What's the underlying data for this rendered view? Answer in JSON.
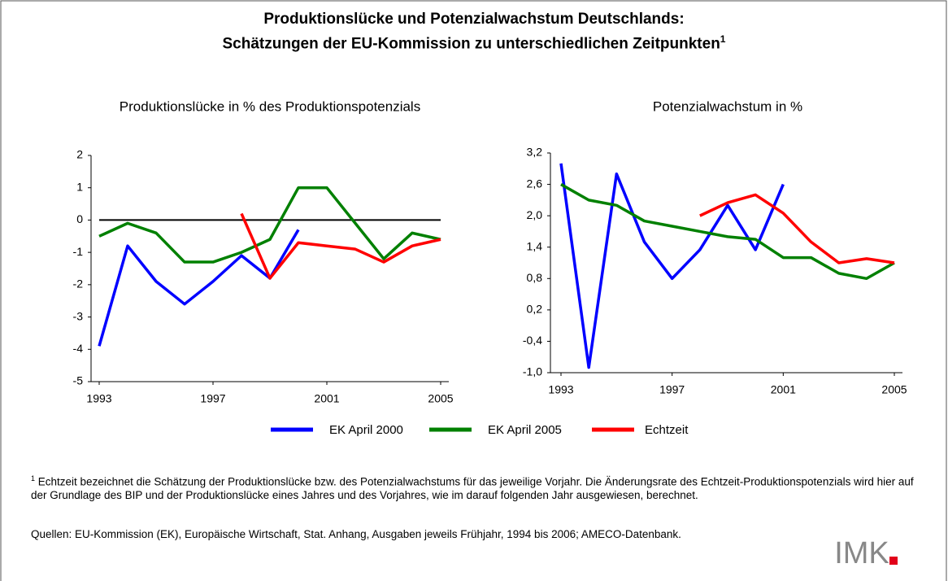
{
  "title": [
    "Produktionslücke und Potenzialwachstum Deutschlands:",
    "Schätzungen der EU-Kommission zu unterschiedlichen Zeitpunkten"
  ],
  "title_note": "1",
  "footnote": {
    "marker": "1",
    "text": "Echtzeit bezeichnet die Schätzung der Produktionslücke bzw. des Potenzialwachstums für das jeweilige Vorjahr. Die Änderungsrate des Echtzeit-Produktionspotenzials wird hier auf der Grundlage des BIP und der Produktionslücke eines Jahres und des Vorjahres, wie im darauf folgenden Jahr ausgewiesen, berechnet."
  },
  "source": "Quellen: EU-Kommission (EK), Europäische Wirtschaft, Stat. Anhang, Ausgaben jeweils Frühjahr, 1994 bis 2006; AMECO-Datenbank.",
  "logo": "IMK",
  "chart_data": [
    {
      "type": "line",
      "title": "Produktionslücke in % des Produktionspotenzials",
      "xlim": [
        1993,
        2005
      ],
      "xticks": [
        1993,
        1997,
        2001,
        2005
      ],
      "ylim": [
        -5,
        2
      ],
      "yticks": [
        -5,
        -4,
        -3,
        -2,
        -1,
        0,
        1,
        2
      ],
      "zero_line": true,
      "series": [
        {
          "name": "EK April 2000",
          "color": "#0000ff",
          "x": [
            1993,
            1994,
            1995,
            1996,
            1997,
            1998,
            1999,
            2000
          ],
          "values": [
            -3.9,
            -0.8,
            -1.9,
            -2.6,
            -1.9,
            -1.1,
            -1.8,
            -0.3
          ]
        },
        {
          "name": "EK April 2005",
          "color": "#008000",
          "x": [
            1993,
            1994,
            1995,
            1996,
            1997,
            1998,
            1999,
            2000,
            2001,
            2002,
            2003,
            2004,
            2005
          ],
          "values": [
            -0.5,
            -0.1,
            -0.4,
            -1.3,
            -1.3,
            -1.0,
            -0.6,
            1.0,
            1.0,
            -0.1,
            -1.2,
            -0.4,
            -0.6
          ]
        },
        {
          "name": "Echtzeit",
          "color": "#ff0000",
          "x": [
            1998,
            1999,
            2000,
            2001,
            2002,
            2003,
            2004,
            2005
          ],
          "values": [
            0.2,
            -1.8,
            -0.7,
            -0.8,
            -0.9,
            -1.3,
            -0.8,
            -0.6
          ]
        }
      ]
    },
    {
      "type": "line",
      "title": "Potenzialwachstum in %",
      "xlim": [
        1993,
        2005
      ],
      "xticks": [
        1993,
        1997,
        2001,
        2005
      ],
      "ylim": [
        -1.0,
        3.2
      ],
      "yticks": [
        {
          "value": -1.0,
          "label": "-1,0"
        },
        {
          "value": -0.4,
          "label": "-0,4"
        },
        {
          "value": 0.2,
          "label": "0,2"
        },
        {
          "value": 0.8,
          "label": "0,8"
        },
        {
          "value": 1.4,
          "label": "1,4"
        },
        {
          "value": 2.0,
          "label": "2,0"
        },
        {
          "value": 2.6,
          "label": "2,6"
        },
        {
          "value": 3.2,
          "label": "3,2"
        }
      ],
      "series": [
        {
          "color": "#0000ff",
          "x": [
            1993,
            1994,
            1995,
            1996,
            1997,
            1998,
            1999,
            2000,
            2001
          ],
          "values": [
            3.0,
            -0.9,
            2.8,
            1.5,
            0.8,
            1.35,
            2.2,
            1.35,
            2.6
          ]
        },
        {
          "color": "#008000",
          "x": [
            1993,
            1994,
            1995,
            1996,
            1997,
            1998,
            1999,
            2000,
            2001,
            2002,
            2003,
            2004,
            2005
          ],
          "values": [
            2.6,
            2.3,
            2.2,
            1.9,
            1.8,
            1.7,
            1.6,
            1.55,
            1.2,
            1.2,
            0.9,
            0.8,
            1.1
          ]
        },
        {
          "color": "#ff0000",
          "x": [
            1998,
            1999,
            2000,
            2001,
            2002,
            2003,
            2004,
            2005
          ],
          "values": [
            2.0,
            2.25,
            2.4,
            2.05,
            1.5,
            1.1,
            1.18,
            1.1
          ]
        }
      ]
    }
  ]
}
